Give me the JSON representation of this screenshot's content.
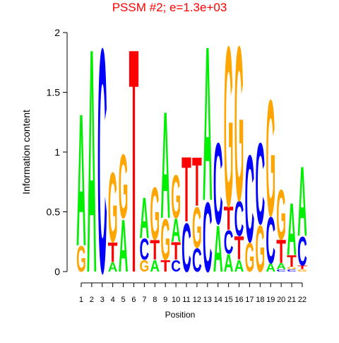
{
  "chart_data": {
    "type": "logo",
    "title": "PSSM #2; e=1.3e+03",
    "xlabel": "Position",
    "ylabel": "Information content",
    "x": [
      1,
      2,
      3,
      4,
      5,
      6,
      7,
      8,
      9,
      10,
      11,
      12,
      13,
      14,
      15,
      16,
      17,
      18,
      19,
      20,
      21,
      22
    ],
    "xlim": [
      0.5,
      22.5
    ],
    "xticks": [
      1,
      2,
      3,
      4,
      5,
      6,
      7,
      8,
      9,
      10,
      11,
      12,
      13,
      14,
      15,
      16,
      17,
      18,
      19,
      20,
      21,
      22
    ],
    "ylim": [
      0,
      2
    ],
    "yticks": [
      0,
      0.5,
      1,
      1.5,
      2
    ],
    "series": [
      {
        "name": "A",
        "color": "#00ee00",
        "values": [
          1.14,
          1.93,
          0,
          0.08,
          0.45,
          0,
          0.35,
          0.1,
          0.92,
          0.2,
          0,
          0,
          1.33,
          0.4,
          0.15,
          0.1,
          0,
          0,
          0.07,
          0.05,
          0.45,
          0.6
        ]
      },
      {
        "name": "C",
        "color": "#0000ff",
        "values": [
          0,
          0,
          1.93,
          0,
          0,
          0,
          0.18,
          0,
          0,
          0.1,
          0.42,
          0.2,
          0.6,
          0.7,
          0.2,
          0.3,
          0.75,
          0.7,
          0.4,
          0.02,
          0.02,
          0.25
        ]
      },
      {
        "name": "G",
        "color": "#ffa500",
        "values": [
          0.22,
          0,
          0,
          0.6,
          0.55,
          0,
          0.1,
          0.45,
          0.35,
          0.37,
          0,
          0.35,
          0,
          0,
          1.38,
          1.33,
          0.25,
          0.4,
          1.0,
          0.43,
          0.02,
          0.02
        ]
      },
      {
        "name": "T",
        "color": "#ff0000",
        "values": [
          0,
          0,
          0,
          0.17,
          0,
          1.93,
          0,
          0.17,
          0.1,
          0.15,
          0.56,
          0.42,
          0,
          0,
          0.2,
          0.2,
          0,
          0,
          0,
          0.2,
          0.1,
          0.03
        ]
      }
    ]
  }
}
